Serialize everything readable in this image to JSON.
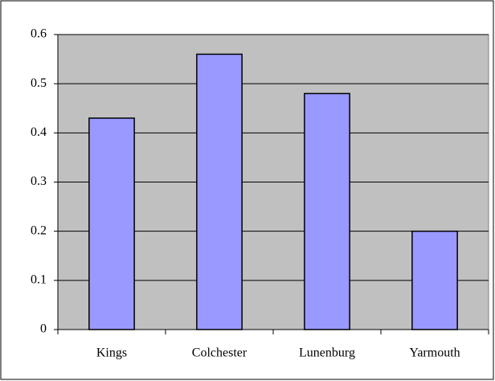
{
  "chart_data": {
    "type": "bar",
    "categories": [
      "Kings",
      "Colchester",
      "Lunenburg",
      "Yarmouth"
    ],
    "values": [
      0.43,
      0.56,
      0.48,
      0.2
    ],
    "color": "#9999ff",
    "ylim": [
      0,
      0.6
    ],
    "yticks": [
      0,
      0.1,
      0.2,
      0.3,
      0.4,
      0.5,
      0.6
    ],
    "grid": true
  }
}
